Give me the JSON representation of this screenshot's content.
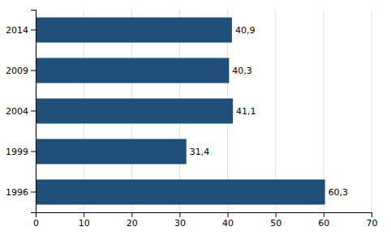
{
  "chart_data": {
    "type": "bar",
    "orientation": "horizontal",
    "categories": [
      "2014",
      "2009",
      "2004",
      "1999",
      "1996"
    ],
    "values": [
      40.9,
      40.3,
      41.1,
      31.4,
      60.3
    ],
    "value_labels": [
      "40,9",
      "40,3",
      "41,1",
      "31,4",
      "60,3"
    ],
    "data_labels": true,
    "color": "#1F4E79",
    "xlim": [
      0,
      70
    ],
    "xticks": [
      0,
      10,
      20,
      30,
      40,
      50,
      60,
      70
    ],
    "grid": true
  }
}
